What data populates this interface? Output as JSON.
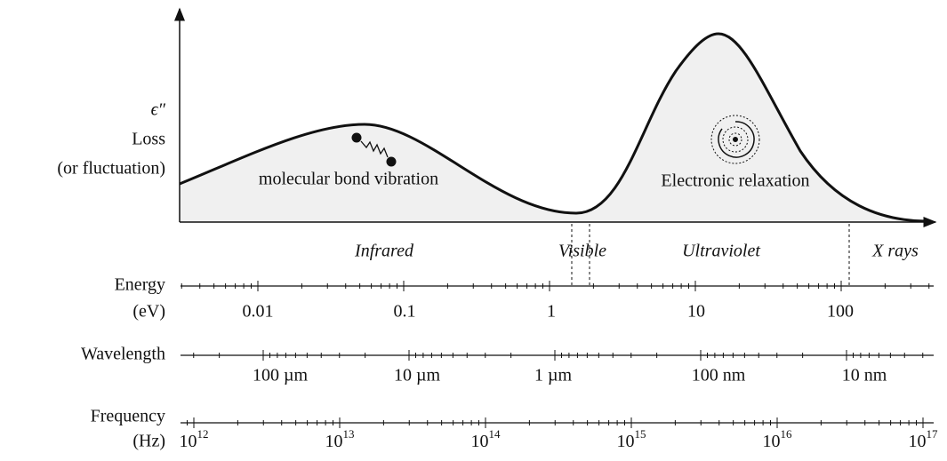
{
  "axis_labels": {
    "y_symbol": "ϵ″",
    "y_line1": "Loss",
    "y_line2": "(or fluctuation)"
  },
  "annotations": [
    "molecular bond vibration",
    "Electronic relaxation"
  ],
  "regions": [
    "Infrared",
    "Visible",
    "Ultraviolet",
    "X rays"
  ],
  "scales": [
    {
      "name": "Energy",
      "unit": "(eV)",
      "ticks": [
        "0.01",
        "0.1",
        "1",
        "10",
        "100"
      ]
    },
    {
      "name": "Wavelength",
      "ticks": [
        "100 µm",
        "10 µm",
        "1 µm",
        "100 nm",
        "10 nm"
      ]
    },
    {
      "name": "Frequency",
      "unit": "(Hz)",
      "ticks": [
        {
          "base": "10",
          "exponent": "12"
        },
        {
          "base": "10",
          "exponent": "13"
        },
        {
          "base": "10",
          "exponent": "14"
        },
        {
          "base": "10",
          "exponent": "15"
        },
        {
          "base": "10",
          "exponent": "16"
        },
        {
          "base": "10",
          "exponent": "17"
        }
      ]
    }
  ]
}
